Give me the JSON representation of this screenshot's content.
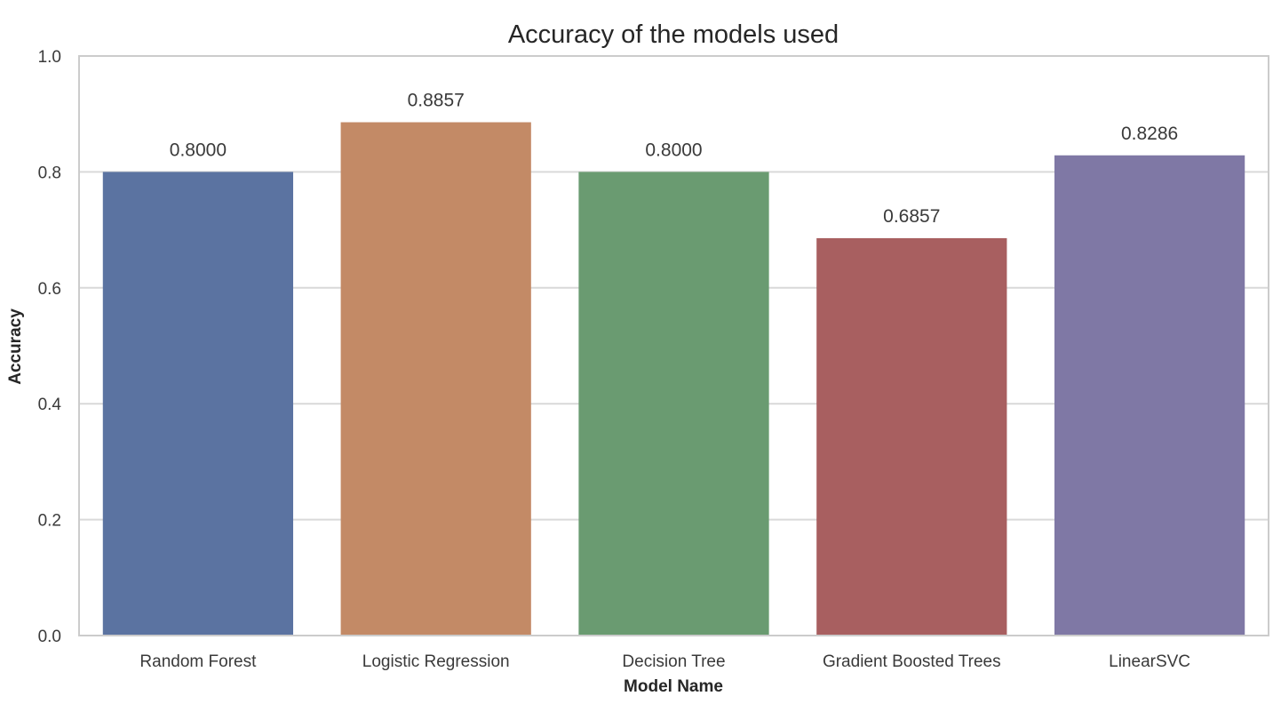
{
  "chart_data": {
    "type": "bar",
    "title": "Accuracy of the models used",
    "xlabel": "Model Name",
    "ylabel": "Accuracy",
    "categories": [
      "Random Forest",
      "Logistic Regression",
      "Decision Tree",
      "Gradient Boosted Trees",
      "LinearSVC"
    ],
    "values": [
      0.8,
      0.8857,
      0.8,
      0.6857,
      0.8286
    ],
    "value_labels": [
      "0.8000",
      "0.8857",
      "0.8000",
      "0.6857",
      "0.8286"
    ],
    "ylim": [
      0,
      1.0
    ],
    "yticks": [
      0.0,
      0.2,
      0.4,
      0.6,
      0.8,
      1.0
    ],
    "ytick_labels": [
      "0.0",
      "0.2",
      "0.4",
      "0.6",
      "0.8",
      "1.0"
    ],
    "colors": [
      "#5b73a1",
      "#c38a66",
      "#6a9b71",
      "#a85f60",
      "#7f78a5"
    ],
    "grid": "horizontal",
    "gridline_color": "#d9d9d9",
    "frame_color": "#cccccc"
  }
}
